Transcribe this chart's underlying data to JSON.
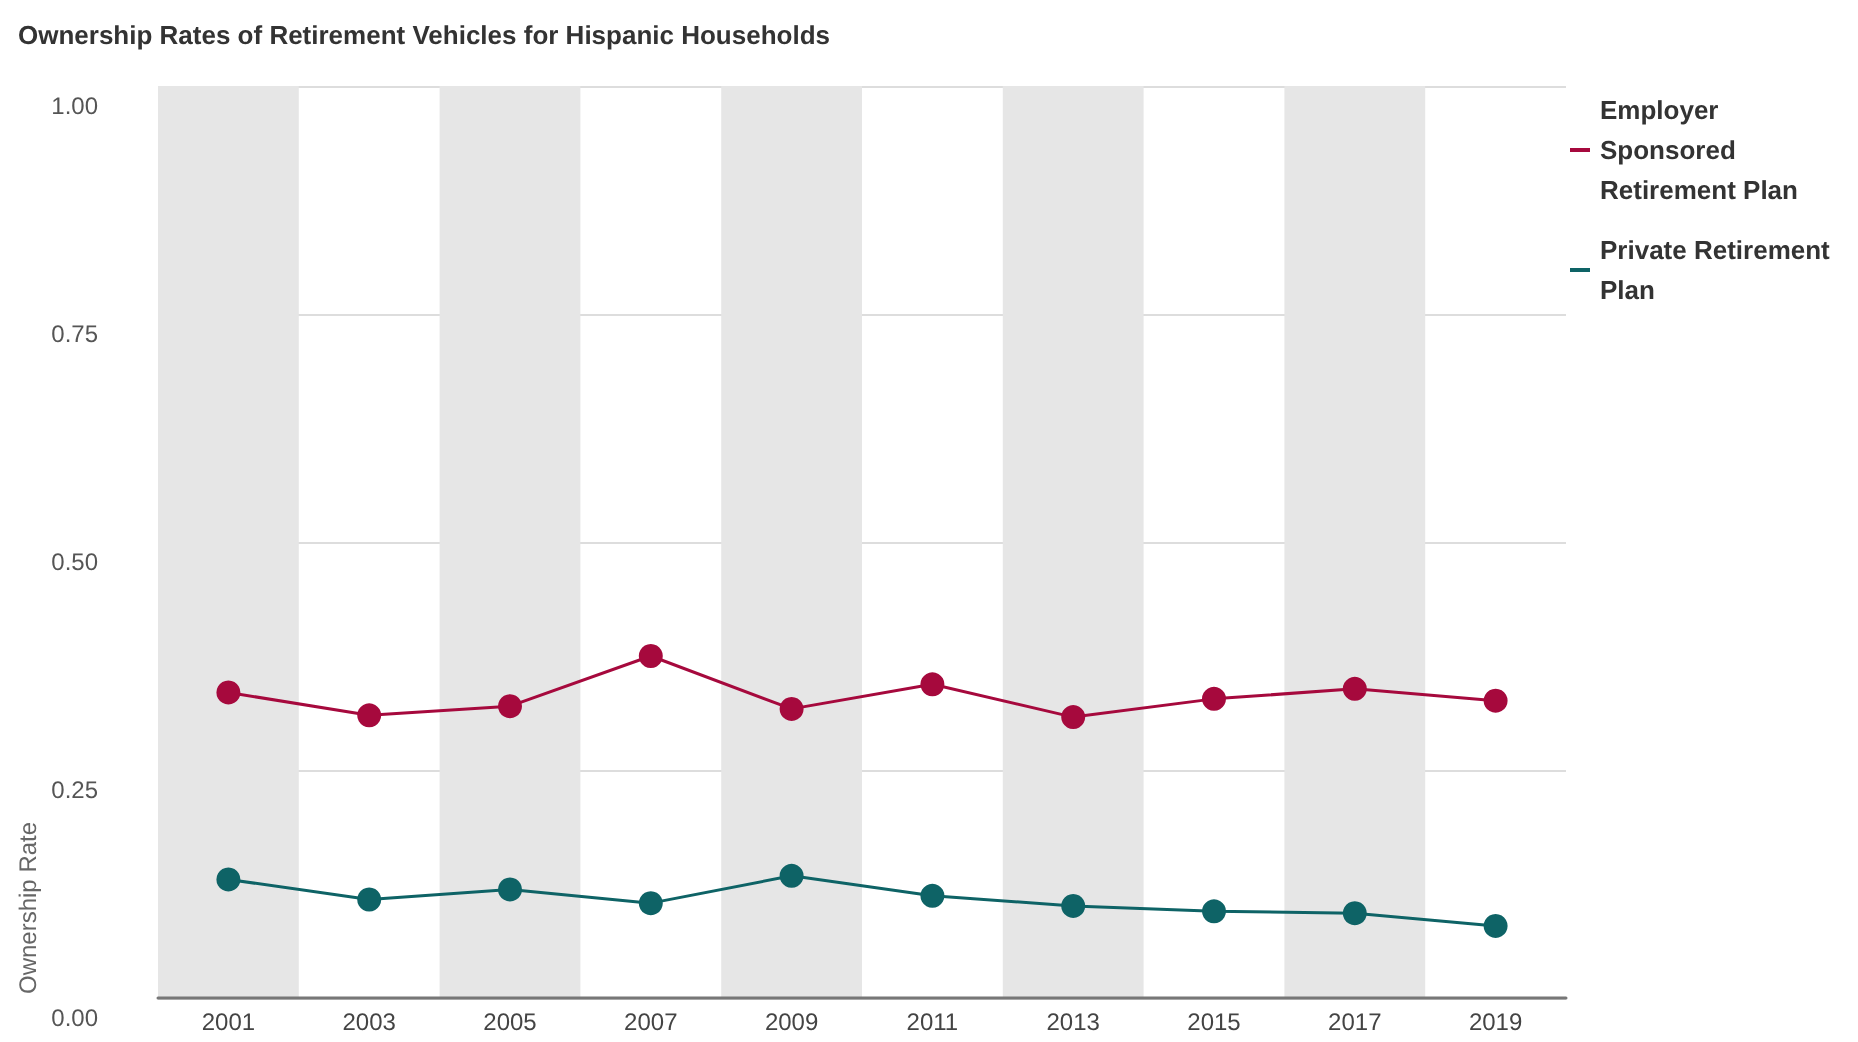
{
  "chart_data": {
    "type": "line",
    "title": "Ownership Rates of Retirement Vehicles for Hispanic Households",
    "ylabel": "Ownership Rate",
    "x": [
      2001,
      2003,
      2005,
      2007,
      2009,
      2011,
      2013,
      2015,
      2017,
      2019
    ],
    "xlim": [
      2000,
      2020
    ],
    "xticks": [
      2001,
      2003,
      2005,
      2007,
      2009,
      2011,
      2013,
      2015,
      2017,
      2019
    ],
    "ylim": [
      0,
      1
    ],
    "yticks": [
      {
        "value": 0,
        "label": "0.00"
      },
      {
        "value": 0.25,
        "label": "0.25"
      },
      {
        "value": 0.5,
        "label": "0.50"
      },
      {
        "value": 0.75,
        "label": "0.75"
      },
      {
        "value": 1,
        "label": "1.00"
      }
    ],
    "series": [
      {
        "name": "Employer Sponsored Retirement Plan",
        "color": "#a6093d",
        "values": [
          0.335,
          0.31,
          0.32,
          0.375,
          0.317,
          0.344,
          0.308,
          0.328,
          0.339,
          0.326
        ]
      },
      {
        "name": "Private Retirement Plan",
        "color": "#0e6366",
        "values": [
          0.13,
          0.108,
          0.119,
          0.104,
          0.134,
          0.112,
          0.101,
          0.095,
          0.093,
          0.079
        ]
      }
    ],
    "bands": [
      {
        "axis": "x",
        "from": 2000,
        "to": 2002,
        "color": "#e6e6e6"
      },
      {
        "axis": "x",
        "from": 2004,
        "to": 2006,
        "color": "#e6e6e6"
      },
      {
        "axis": "x",
        "from": 2008,
        "to": 2010,
        "color": "#e6e6e6"
      },
      {
        "axis": "x",
        "from": 2012,
        "to": 2014,
        "color": "#e6e6e6"
      },
      {
        "axis": "x",
        "from": 2016,
        "to": 2018,
        "color": "#e6e6e6"
      }
    ],
    "grid": "y",
    "legend": "top right",
    "marker": "circle",
    "line_style": "solid"
  }
}
